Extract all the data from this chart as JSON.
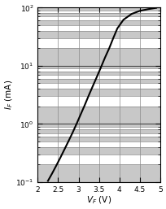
{
  "title": "",
  "xlabel": "V_F (V)",
  "ylabel": "I_F (mA)",
  "xmin": 2,
  "xmax": 5,
  "ymin": 0.1,
  "ymax": 100,
  "curve_vf": [
    2.25,
    2.35,
    2.45,
    2.55,
    2.65,
    2.75,
    2.85,
    2.95,
    3.05,
    3.15,
    3.25,
    3.35,
    3.45,
    3.55,
    3.65,
    3.75,
    3.85,
    3.95,
    4.1,
    4.3,
    4.5,
    4.7,
    4.9
  ],
  "curve_if": [
    0.105,
    0.14,
    0.19,
    0.26,
    0.36,
    0.5,
    0.7,
    1.0,
    1.45,
    2.1,
    3.1,
    4.5,
    6.5,
    9.5,
    14,
    20,
    30,
    44,
    62,
    78,
    88,
    94,
    99
  ],
  "line_color": "#000000",
  "line_width": 1.5,
  "bg_color": "#ffffff",
  "band_color_dark": "#c8c8c8",
  "band_color_light": "#ffffff",
  "grid_minor_color": "#888888",
  "grid_major_color": "#444444",
  "xticks": [
    2,
    2.5,
    3,
    3.5,
    4,
    4.5,
    5
  ],
  "xtick_labels": [
    "2",
    "2.5",
    "3",
    "3.5",
    "4",
    "4.5",
    "5"
  ],
  "figsize": [
    2.04,
    2.57
  ],
  "dpi": 100
}
